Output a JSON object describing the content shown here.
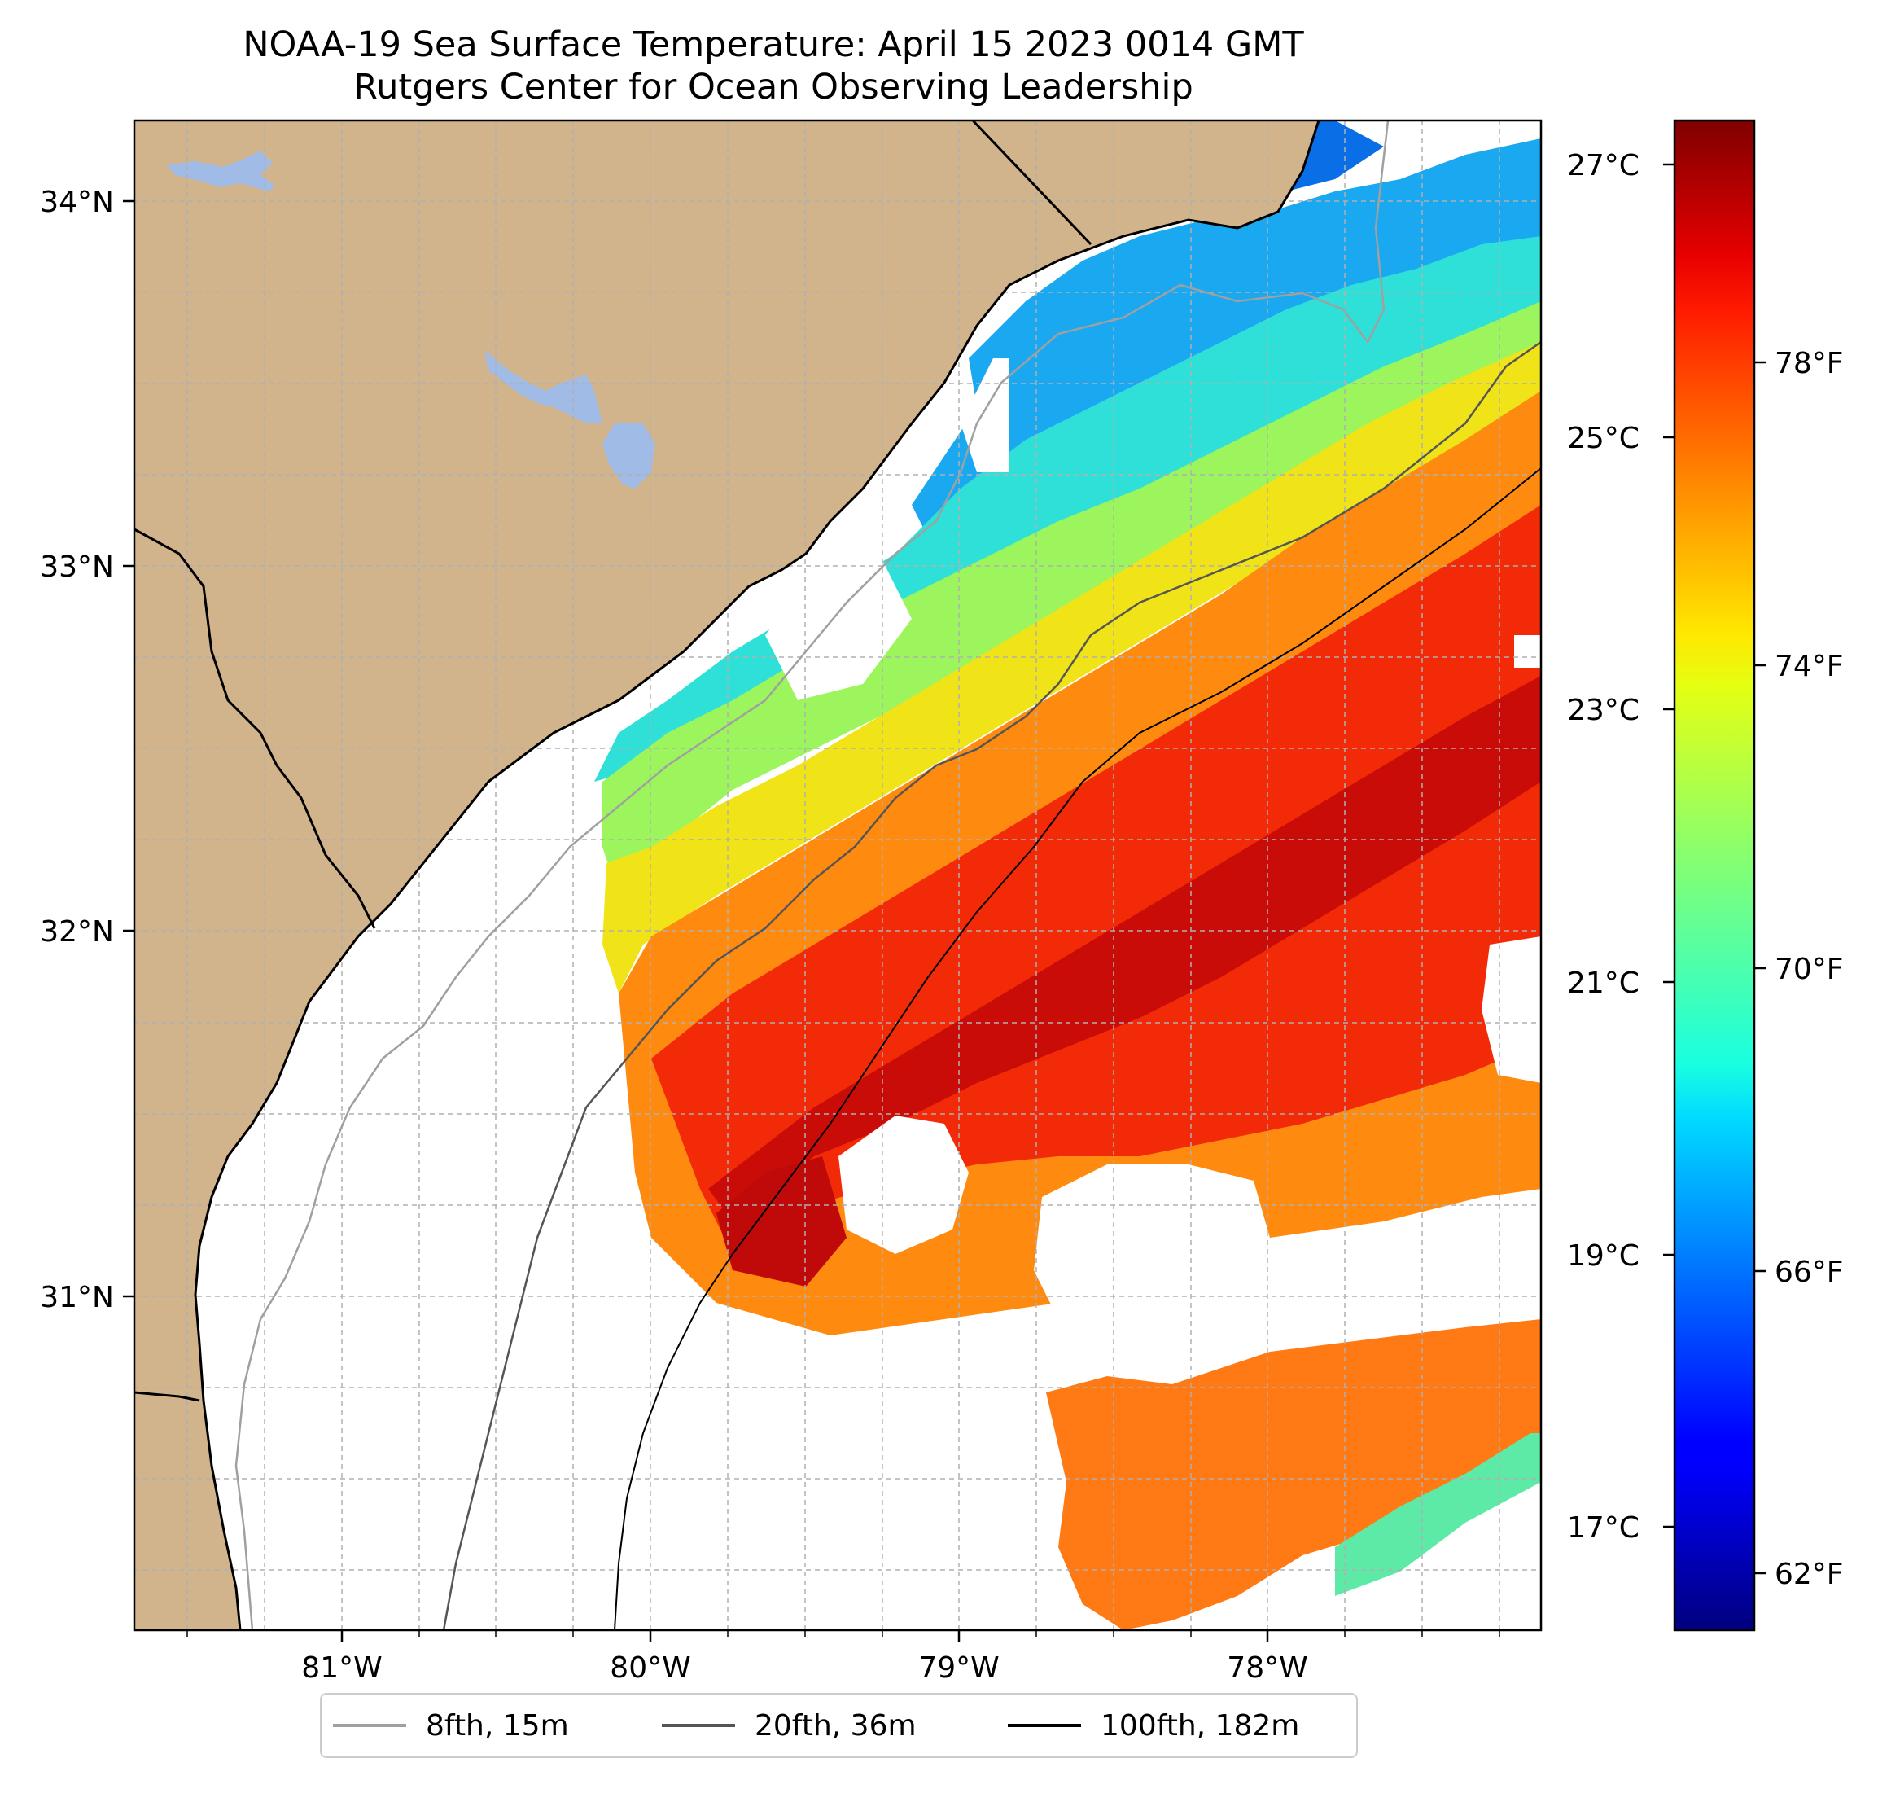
{
  "title": {
    "line1": "NOAA-19 Sea Surface Temperature: April 15 2023 0014 GMT",
    "line2": "Rutgers Center for Ocean Observing Leadership"
  },
  "map": {
    "lon_range": [
      -81.67,
      -77.1
    ],
    "lat_range": [
      30.07,
      34.22
    ],
    "lon_ticks": [
      {
        "value": -81,
        "label": "81°W"
      },
      {
        "value": -80,
        "label": "80°W"
      },
      {
        "value": -79,
        "label": "79°W"
      },
      {
        "value": -78,
        "label": "78°W"
      }
    ],
    "lat_ticks": [
      {
        "value": 34,
        "label": "34°N"
      },
      {
        "value": 33,
        "label": "33°N"
      },
      {
        "value": 32,
        "label": "32°N"
      },
      {
        "value": 31,
        "label": "31°N"
      }
    ],
    "minor_gridlines": "every 0.25°",
    "colors": {
      "land": "#d2b48c",
      "water_bodies": "#9fbbe6",
      "coastline": "#000000",
      "gridline": "#b0b0b0"
    }
  },
  "colorbar": {
    "colormap": "jet",
    "range_c": [
      16.2,
      27.3
    ],
    "celsius_ticks": [
      {
        "value": 27,
        "label": "27°C"
      },
      {
        "value": 25,
        "label": "25°C"
      },
      {
        "value": 23,
        "label": "23°C"
      },
      {
        "value": 21,
        "label": "21°C"
      },
      {
        "value": 19,
        "label": "19°C"
      },
      {
        "value": 17,
        "label": "17°C"
      }
    ],
    "fahrenheit_ticks": [
      {
        "value": 78,
        "label": "78°F"
      },
      {
        "value": 74,
        "label": "74°F"
      },
      {
        "value": 70,
        "label": "70°F"
      },
      {
        "value": 66,
        "label": "66°F"
      },
      {
        "value": 62,
        "label": "62°F"
      }
    ]
  },
  "legend": {
    "placement": "bottom-center",
    "items": [
      {
        "label": "8fth, 15m",
        "color": "#a0a0a0"
      },
      {
        "label": "20fth, 36m",
        "color": "#555555"
      },
      {
        "label": "100fth, 182m",
        "color": "#000000"
      }
    ]
  }
}
